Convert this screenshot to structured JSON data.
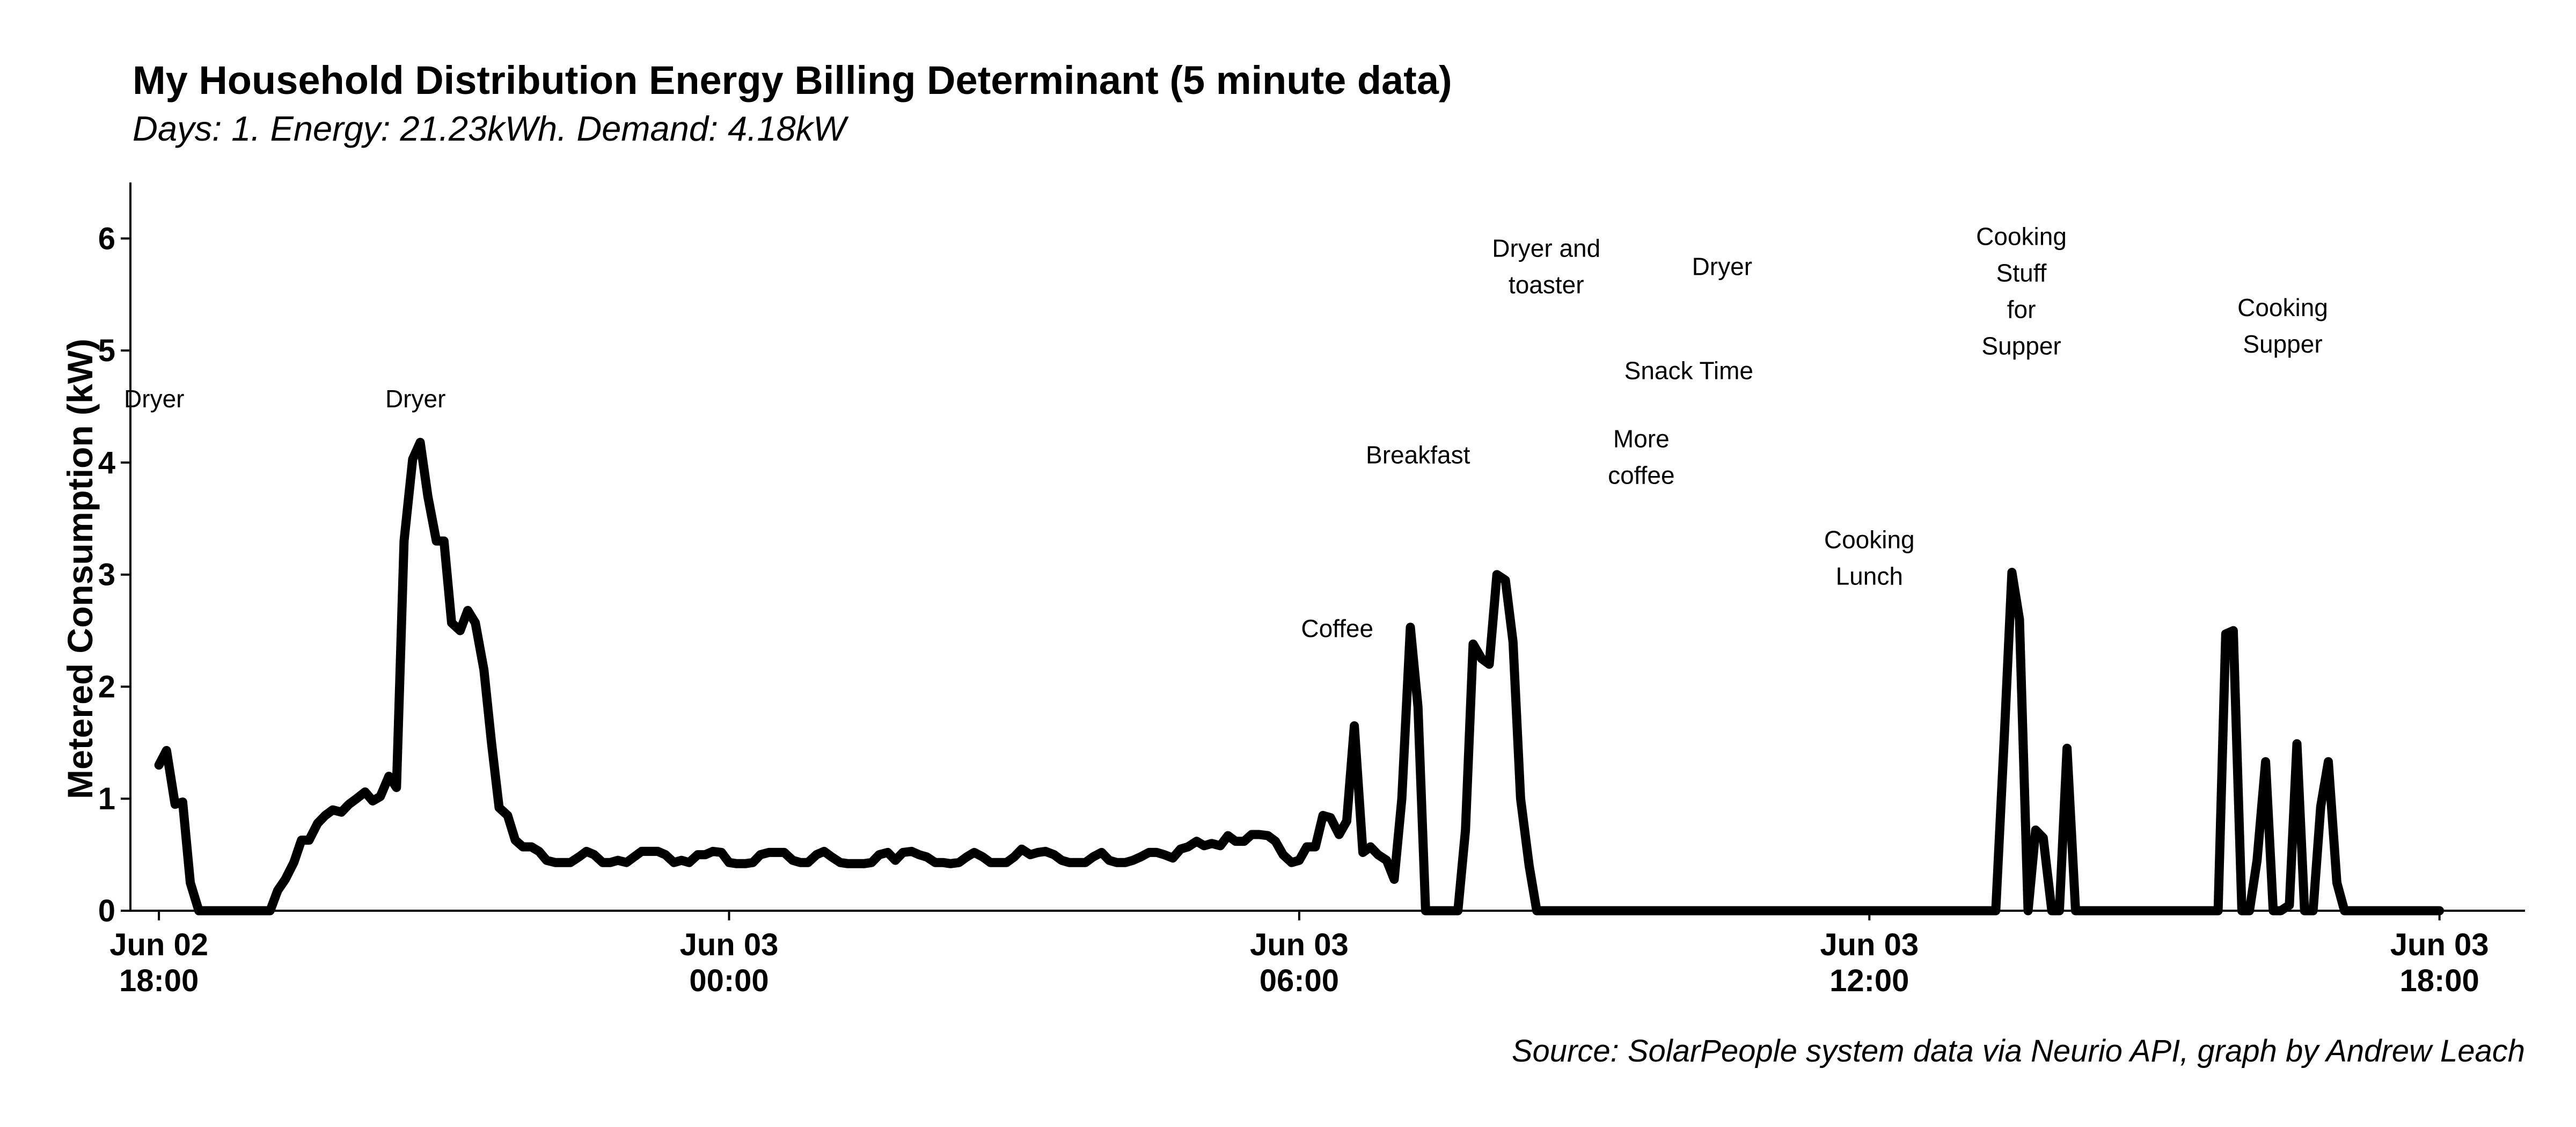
{
  "chart_data": {
    "type": "line",
    "title": "My Household Distribution Energy Billing Determinant (5 minute data)",
    "subtitle": "Days: 1. Energy: 21.23kWh. Demand: 4.18kW",
    "caption": "Source: SolarPeople system data via Neurio API, graph by Andrew Leach",
    "xlabel": "",
    "ylabel": "Metered Consumption (kW)",
    "xlim": [
      -0.3,
      24.9
    ],
    "ylim": [
      0,
      6.5
    ],
    "yticks": [
      0,
      1,
      2,
      3,
      4,
      5,
      6
    ],
    "xticks": [
      {
        "value": 0,
        "line1": "Jun 02",
        "line2": "18:00"
      },
      {
        "value": 6,
        "line1": "Jun 03",
        "line2": "00:00"
      },
      {
        "value": 12,
        "line1": "Jun 03",
        "line2": "06:00"
      },
      {
        "value": 18,
        "line1": "Jun 03",
        "line2": "12:00"
      },
      {
        "value": 24,
        "line1": "Jun 03",
        "line2": "18:00"
      }
    ],
    "x_unit": "hours after Jun 02 18:00",
    "grid": false,
    "legend": "none",
    "series": [
      {
        "color": "#000000",
        "points": [
          [
            0.0,
            1.3
          ],
          [
            0.08,
            1.43
          ],
          [
            0.17,
            0.95
          ],
          [
            0.25,
            0.97
          ],
          [
            0.33,
            0.25
          ],
          [
            0.42,
            0.0
          ],
          [
            1.17,
            0.0
          ],
          [
            1.25,
            0.18
          ],
          [
            1.33,
            0.28
          ],
          [
            1.42,
            0.43
          ],
          [
            1.5,
            0.63
          ],
          [
            1.58,
            0.63
          ],
          [
            1.67,
            0.78
          ],
          [
            1.75,
            0.85
          ],
          [
            1.83,
            0.9
          ],
          [
            1.92,
            0.88
          ],
          [
            2.0,
            0.95
          ],
          [
            2.08,
            1.0
          ],
          [
            2.17,
            1.06
          ],
          [
            2.25,
            0.98
          ],
          [
            2.33,
            1.02
          ],
          [
            2.42,
            1.2
          ],
          [
            2.5,
            1.1
          ],
          [
            2.58,
            3.3
          ],
          [
            2.67,
            4.03
          ],
          [
            2.75,
            4.18
          ],
          [
            2.83,
            3.7
          ],
          [
            2.92,
            3.3
          ],
          [
            3.0,
            3.3
          ],
          [
            3.08,
            2.57
          ],
          [
            3.17,
            2.5
          ],
          [
            3.25,
            2.68
          ],
          [
            3.33,
            2.57
          ],
          [
            3.42,
            2.15
          ],
          [
            3.5,
            1.5
          ],
          [
            3.58,
            0.92
          ],
          [
            3.67,
            0.85
          ],
          [
            3.75,
            0.63
          ],
          [
            3.83,
            0.57
          ],
          [
            3.92,
            0.57
          ],
          [
            4.0,
            0.53
          ],
          [
            4.08,
            0.45
          ],
          [
            4.17,
            0.43
          ],
          [
            4.25,
            0.43
          ],
          [
            4.33,
            0.43
          ],
          [
            4.42,
            0.48
          ],
          [
            4.5,
            0.53
          ],
          [
            4.58,
            0.5
          ],
          [
            4.67,
            0.43
          ],
          [
            4.75,
            0.43
          ],
          [
            4.83,
            0.45
          ],
          [
            4.92,
            0.43
          ],
          [
            5.0,
            0.48
          ],
          [
            5.08,
            0.53
          ],
          [
            5.17,
            0.53
          ],
          [
            5.25,
            0.53
          ],
          [
            5.33,
            0.5
          ],
          [
            5.42,
            0.43
          ],
          [
            5.5,
            0.45
          ],
          [
            5.58,
            0.43
          ],
          [
            5.67,
            0.5
          ],
          [
            5.75,
            0.5
          ],
          [
            5.83,
            0.53
          ],
          [
            5.92,
            0.52
          ],
          [
            6.0,
            0.43
          ],
          [
            6.08,
            0.42
          ],
          [
            6.17,
            0.42
          ],
          [
            6.25,
            0.43
          ],
          [
            6.33,
            0.5
          ],
          [
            6.42,
            0.52
          ],
          [
            6.5,
            0.52
          ],
          [
            6.58,
            0.52
          ],
          [
            6.67,
            0.45
          ],
          [
            6.75,
            0.43
          ],
          [
            6.83,
            0.43
          ],
          [
            6.92,
            0.5
          ],
          [
            7.0,
            0.53
          ],
          [
            7.08,
            0.48
          ],
          [
            7.17,
            0.43
          ],
          [
            7.25,
            0.42
          ],
          [
            7.33,
            0.42
          ],
          [
            7.42,
            0.42
          ],
          [
            7.5,
            0.43
          ],
          [
            7.58,
            0.5
          ],
          [
            7.67,
            0.52
          ],
          [
            7.75,
            0.45
          ],
          [
            7.83,
            0.52
          ],
          [
            7.92,
            0.53
          ],
          [
            8.0,
            0.5
          ],
          [
            8.08,
            0.48
          ],
          [
            8.17,
            0.43
          ],
          [
            8.25,
            0.43
          ],
          [
            8.33,
            0.42
          ],
          [
            8.42,
            0.43
          ],
          [
            8.5,
            0.48
          ],
          [
            8.58,
            0.52
          ],
          [
            8.67,
            0.48
          ],
          [
            8.75,
            0.43
          ],
          [
            8.83,
            0.43
          ],
          [
            8.92,
            0.43
          ],
          [
            9.0,
            0.48
          ],
          [
            9.08,
            0.55
          ],
          [
            9.17,
            0.5
          ],
          [
            9.25,
            0.52
          ],
          [
            9.33,
            0.53
          ],
          [
            9.42,
            0.5
          ],
          [
            9.5,
            0.45
          ],
          [
            9.58,
            0.43
          ],
          [
            9.67,
            0.43
          ],
          [
            9.75,
            0.43
          ],
          [
            9.83,
            0.48
          ],
          [
            9.92,
            0.52
          ],
          [
            10.0,
            0.45
          ],
          [
            10.08,
            0.43
          ],
          [
            10.17,
            0.43
          ],
          [
            10.25,
            0.45
          ],
          [
            10.33,
            0.48
          ],
          [
            10.42,
            0.52
          ],
          [
            10.5,
            0.52
          ],
          [
            10.58,
            0.5
          ],
          [
            10.67,
            0.47
          ],
          [
            10.75,
            0.55
          ],
          [
            10.83,
            0.57
          ],
          [
            10.92,
            0.62
          ],
          [
            11.0,
            0.58
          ],
          [
            11.08,
            0.6
          ],
          [
            11.17,
            0.58
          ],
          [
            11.25,
            0.67
          ],
          [
            11.33,
            0.62
          ],
          [
            11.42,
            0.62
          ],
          [
            11.5,
            0.68
          ],
          [
            11.58,
            0.68
          ],
          [
            11.67,
            0.67
          ],
          [
            11.75,
            0.62
          ],
          [
            11.83,
            0.5
          ],
          [
            11.92,
            0.43
          ],
          [
            12.0,
            0.45
          ],
          [
            12.08,
            0.57
          ],
          [
            12.17,
            0.57
          ],
          [
            12.25,
            0.85
          ],
          [
            12.33,
            0.83
          ],
          [
            12.42,
            0.68
          ],
          [
            12.5,
            0.8
          ],
          [
            12.58,
            1.65
          ],
          [
            12.67,
            0.52
          ],
          [
            12.75,
            0.57
          ],
          [
            12.83,
            0.5
          ],
          [
            12.92,
            0.45
          ],
          [
            13.0,
            0.28
          ],
          [
            13.08,
            1.0
          ],
          [
            13.17,
            2.53
          ],
          [
            13.25,
            1.82
          ],
          [
            13.33,
            0.0
          ],
          [
            13.67,
            0.0
          ],
          [
            13.75,
            0.72
          ],
          [
            13.83,
            2.38
          ],
          [
            13.92,
            2.25
          ],
          [
            14.0,
            2.2
          ],
          [
            14.08,
            3.0
          ],
          [
            14.17,
            2.95
          ],
          [
            14.25,
            2.4
          ],
          [
            14.33,
            1.0
          ],
          [
            14.42,
            0.4
          ],
          [
            14.5,
            0.0
          ],
          [
            19.33,
            0.0
          ],
          [
            19.42,
            1.55
          ],
          [
            19.5,
            3.02
          ],
          [
            19.58,
            2.6
          ],
          [
            19.67,
            0.0
          ],
          [
            19.75,
            0.72
          ],
          [
            19.83,
            0.65
          ],
          [
            19.92,
            0.0
          ],
          [
            20.0,
            0.0
          ],
          [
            20.08,
            1.45
          ],
          [
            20.17,
            0.0
          ],
          [
            21.67,
            0.0
          ],
          [
            21.75,
            2.47
          ],
          [
            21.83,
            2.5
          ],
          [
            21.92,
            0.0
          ],
          [
            22.0,
            0.0
          ],
          [
            22.08,
            0.45
          ],
          [
            22.17,
            1.33
          ],
          [
            22.25,
            0.0
          ],
          [
            22.33,
            0.0
          ],
          [
            22.42,
            0.05
          ],
          [
            22.5,
            1.49
          ],
          [
            22.58,
            0.0
          ],
          [
            22.67,
            0.0
          ],
          [
            22.75,
            0.93
          ],
          [
            22.83,
            1.33
          ],
          [
            22.92,
            0.25
          ],
          [
            23.0,
            0.0
          ],
          [
            24.0,
            0.0
          ]
        ]
      }
    ],
    "annotations": [
      {
        "x": -0.05,
        "y": 4.57,
        "lines": [
          "Dryer"
        ]
      },
      {
        "x": 2.7,
        "y": 4.57,
        "lines": [
          "Dryer"
        ]
      },
      {
        "x": 12.4,
        "y": 2.52,
        "lines": [
          "Coffee"
        ]
      },
      {
        "x": 13.25,
        "y": 4.07,
        "lines": [
          "Breakfast"
        ]
      },
      {
        "x": 14.6,
        "y": 5.75,
        "lines": [
          "Dryer and",
          "toaster"
        ]
      },
      {
        "x": 16.45,
        "y": 5.75,
        "lines": [
          "Dryer"
        ]
      },
      {
        "x": 16.1,
        "y": 4.82,
        "lines": [
          "Snack Time"
        ]
      },
      {
        "x": 15.6,
        "y": 4.05,
        "lines": [
          "More",
          "coffee"
        ]
      },
      {
        "x": 18.0,
        "y": 3.15,
        "lines": [
          "Cooking",
          "Lunch"
        ]
      },
      {
        "x": 19.6,
        "y": 5.53,
        "lines": [
          "Cooking",
          "Stuff",
          "for",
          "Supper"
        ]
      },
      {
        "x": 22.35,
        "y": 5.22,
        "lines": [
          "Cooking",
          "Supper"
        ]
      }
    ]
  }
}
